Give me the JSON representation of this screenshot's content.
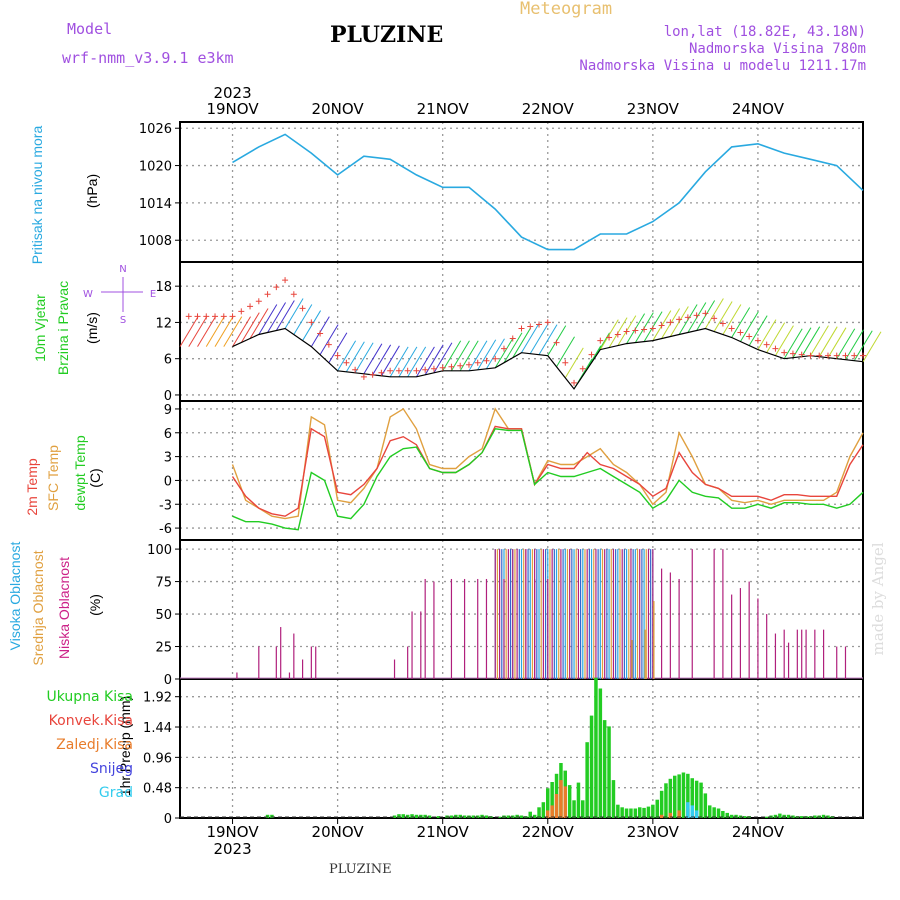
{
  "header": {
    "model_label": "Model",
    "model_name": "wrf-nmm_v3.9.1 e3km",
    "station": "PLUZINE",
    "meteogram": "Meteogram",
    "lonlat": "lon,lat (18.82E, 43.18N)",
    "altitude": "Nadmorska Visina 780m",
    "model_altitude": "Nadmorska Visina u modelu 1211.17m",
    "footer": "PLUZINE",
    "credit": "made by Angel"
  },
  "colors": {
    "pressure": "#29a9e0",
    "wind_speed": "#000000",
    "wind_gust": "#e8453c",
    "temp_2m": "#e8453c",
    "temp_sfc": "#e0a040",
    "temp_dew": "#22cc22",
    "cloud_high": "#29a9e0",
    "cloud_mid": "#e0a040",
    "cloud_low": "#b0207c",
    "precip_total": "#22cc22",
    "precip_conv": "#e8453c",
    "precip_frozen": "#e87c2a",
    "precip_snow": "#4444dd",
    "precip_hail": "#33ccee"
  },
  "axes": {
    "year": "2023",
    "days": [
      "19NOV",
      "20NOV",
      "21NOV",
      "22NOV",
      "23NOV",
      "24NOV"
    ]
  },
  "panels": {
    "pressure": {
      "label1": "Pritisak na nivou mora",
      "unit": "(hPa)"
    },
    "wind": {
      "label1": "10m Vjetar",
      "label2": "Brzina i Pravac",
      "unit": "(m/s)",
      "compass_n": "N",
      "compass_s": "S",
      "compass_w": "W",
      "compass_e": "E"
    },
    "temp": {
      "label1": "2m Temp",
      "label2": "SFC Temp",
      "label3": "dewpt Temp",
      "unit": "(C)"
    },
    "cloud": {
      "label1": "Visoka Oblacnost",
      "label2": "Srednja Oblacnost",
      "label3": "Niska Oblacnost",
      "unit": "(%)"
    },
    "precip": {
      "unit": "1hr Precip (mm)"
    }
  },
  "legend_precip": [
    "Ukupna Kisa",
    "Konvek.Kisa",
    "Zaledj.Kisa",
    "Snijeg",
    "Grad"
  ],
  "chart_data": [
    {
      "type": "line",
      "name": "pressure",
      "x_hours": [
        0,
        6,
        12,
        18,
        24,
        30,
        36,
        42,
        48,
        54,
        60,
        66,
        72,
        78,
        84,
        90,
        96,
        102,
        108,
        114,
        120,
        126,
        132,
        138,
        144
      ],
      "series": [
        {
          "values": [
            1020.5,
            1023,
            1025,
            1022,
            1018.5,
            1021.5,
            1021,
            1018.5,
            1016.5,
            1016.5,
            1013,
            1008.5,
            1006.5,
            1006.5,
            1009,
            1009,
            1011,
            1014,
            1019,
            1023,
            1023.5,
            1022,
            1021,
            1020,
            1016
          ]
        }
      ],
      "yticks": [
        1008,
        1014,
        1020,
        1026
      ],
      "ylim": [
        1004.5,
        1027
      ]
    },
    {
      "type": "line",
      "name": "wind",
      "x_hours": [
        0,
        6,
        12,
        18,
        24,
        30,
        36,
        42,
        48,
        54,
        60,
        66,
        72,
        78,
        84,
        90,
        96,
        102,
        108,
        114,
        120,
        126,
        132,
        138,
        144
      ],
      "series": [
        {
          "values": [
            8,
            10,
            11,
            8,
            4,
            3.5,
            3,
            3,
            4,
            4,
            4.5,
            7,
            6.5,
            1,
            7.5,
            8.5,
            9,
            10,
            11,
            9.5,
            7.5,
            6,
            6.5,
            6,
            5.5
          ]
        },
        {
          "values": [
            13,
            15.5,
            19,
            12,
            6.5,
            3,
            4,
            4,
            4.5,
            5,
            6,
            11,
            12,
            2,
            9,
            10.5,
            11,
            12.5,
            13.5,
            11,
            9,
            7,
            6.5,
            6.5,
            6.5
          ]
        }
      ],
      "yticks": [
        0,
        6,
        12,
        18
      ],
      "ylim": [
        -1,
        22
      ]
    },
    {
      "type": "line",
      "name": "temperature",
      "x_hours": [
        0,
        3,
        6,
        9,
        12,
        15,
        18,
        21,
        24,
        27,
        30,
        33,
        36,
        39,
        42,
        45,
        48,
        51,
        54,
        57,
        60,
        63,
        66,
        69,
        72,
        75,
        78,
        81,
        84,
        87,
        90,
        93,
        96,
        99,
        102,
        105,
        108,
        111,
        114,
        117,
        120,
        123,
        126,
        129,
        132,
        135,
        138,
        141,
        144
      ],
      "series": [
        {
          "values": [
            0.5,
            -2,
            -3.5,
            -4.2,
            -4.5,
            -3.5,
            6.5,
            5.5,
            -1.5,
            -1.8,
            -0.5,
            1.5,
            5,
            5.5,
            4.5,
            1.5,
            1,
            1,
            2,
            3.5,
            6.8,
            6.5,
            6.5,
            -0.5,
            2,
            1.5,
            1.5,
            3.5,
            2,
            1.5,
            0.5,
            -0.5,
            -2,
            -1,
            3.5,
            1,
            -0.5,
            -1,
            -2,
            -2,
            -2,
            -2.5,
            -1.8,
            -1.8,
            -2,
            -2,
            -2,
            2,
            4.5
          ]
        },
        {
          "values": [
            2,
            -2.5,
            -3.5,
            -4.5,
            -4.8,
            -4.5,
            8,
            7,
            -2.5,
            -2.8,
            -1,
            1.5,
            8,
            9,
            6.5,
            2,
            1.5,
            1.5,
            3,
            4,
            9,
            6.5,
            6.5,
            -0.5,
            2.5,
            2,
            2,
            3,
            4,
            2,
            1,
            -0.5,
            -3,
            -1.5,
            6,
            3,
            -0.5,
            -1,
            -2.5,
            -2.8,
            -2.5,
            -3,
            -2.5,
            -2.5,
            -2.5,
            -2.5,
            -1.5,
            3,
            6
          ]
        },
        {
          "values": [
            -4.5,
            -5.2,
            -5.2,
            -5.5,
            -6,
            -6.2,
            1,
            0,
            -4.5,
            -4.8,
            -3,
            0.5,
            3,
            4,
            4.2,
            1.5,
            1,
            1,
            2,
            3.5,
            6.5,
            6.3,
            6.3,
            -0.5,
            1,
            0.5,
            0.5,
            1,
            1.5,
            0.5,
            -0.5,
            -1.5,
            -3.5,
            -2.5,
            0,
            -1.5,
            -2,
            -2.2,
            -3.5,
            -3.5,
            -3,
            -3.5,
            -2.8,
            -2.8,
            -3,
            -3,
            -3.5,
            -3,
            -1.5
          ]
        }
      ],
      "yticks": [
        -6,
        -3,
        0,
        3,
        6,
        9
      ],
      "ylim": [
        -7.5,
        10
      ]
    },
    {
      "type": "bar",
      "name": "cloud",
      "yticks": [
        0,
        25,
        50,
        75,
        100
      ],
      "ylim": [
        0,
        107
      ],
      "low_bars": [
        [
          1,
          5
        ],
        [
          6,
          25
        ],
        [
          10,
          25
        ],
        [
          11,
          40
        ],
        [
          13,
          5
        ],
        [
          14,
          35
        ],
        [
          16,
          15
        ],
        [
          18,
          25
        ],
        [
          19,
          25
        ],
        [
          37,
          15
        ],
        [
          40,
          25
        ],
        [
          41,
          52
        ],
        [
          43,
          52
        ],
        [
          44,
          77
        ],
        [
          46,
          75
        ],
        [
          50,
          77
        ],
        [
          53,
          77
        ],
        [
          56,
          77
        ],
        [
          58,
          77
        ],
        [
          60,
          100
        ],
        [
          62,
          77
        ],
        [
          64,
          100
        ],
        [
          67,
          100
        ],
        [
          69,
          77
        ],
        [
          72,
          77
        ],
        [
          96,
          100
        ],
        [
          98,
          85
        ],
        [
          100,
          82
        ],
        [
          102,
          77
        ],
        [
          105,
          100
        ],
        [
          110,
          100
        ],
        [
          112,
          100
        ],
        [
          114,
          65
        ],
        [
          116,
          70
        ],
        [
          118,
          75
        ],
        [
          120,
          62
        ],
        [
          122,
          50
        ],
        [
          124,
          35
        ],
        [
          126,
          38
        ],
        [
          127,
          28
        ],
        [
          129,
          38
        ],
        [
          130,
          38
        ],
        [
          131,
          38
        ],
        [
          133,
          38
        ],
        [
          135,
          38
        ],
        [
          138,
          25
        ],
        [
          140,
          25
        ]
      ],
      "overcast_hours": [
        60,
        96
      ],
      "mid_bars": [
        [
          91,
          30
        ],
        [
          94,
          38
        ],
        [
          96,
          60
        ]
      ]
    },
    {
      "type": "bar",
      "name": "precip",
      "yticks": [
        0,
        0.48,
        0.96,
        1.44,
        1.92
      ],
      "ylim": [
        0,
        2.2
      ],
      "total": [
        [
          8,
          0.05
        ],
        [
          9,
          0.05
        ],
        [
          37,
          0.04
        ],
        [
          38,
          0.06
        ],
        [
          39,
          0.06
        ],
        [
          40,
          0.05
        ],
        [
          41,
          0.06
        ],
        [
          42,
          0.05
        ],
        [
          43,
          0.05
        ],
        [
          44,
          0.05
        ],
        [
          45,
          0.04
        ],
        [
          47,
          0.03
        ],
        [
          49,
          0.04
        ],
        [
          50,
          0.04
        ],
        [
          51,
          0.05
        ],
        [
          52,
          0.05
        ],
        [
          53,
          0.04
        ],
        [
          54,
          0.04
        ],
        [
          55,
          0.04
        ],
        [
          56,
          0.04
        ],
        [
          57,
          0.05
        ],
        [
          58,
          0.04
        ],
        [
          59,
          0.03
        ],
        [
          61,
          0.02
        ],
        [
          62,
          0.04
        ],
        [
          63,
          0.04
        ],
        [
          64,
          0.04
        ],
        [
          65,
          0.05
        ],
        [
          66,
          0.04
        ],
        [
          67,
          0.03
        ],
        [
          68,
          0.1
        ],
        [
          69,
          0.05
        ],
        [
          70,
          0.17
        ],
        [
          71,
          0.25
        ],
        [
          72,
          0.47
        ],
        [
          73,
          0.57
        ],
        [
          74,
          0.7
        ],
        [
          75,
          0.87
        ],
        [
          76,
          0.75
        ],
        [
          77,
          0.52
        ],
        [
          78,
          0.28
        ],
        [
          79,
          0.56
        ],
        [
          80,
          0.28
        ],
        [
          81,
          1.2
        ],
        [
          82,
          1.62
        ],
        [
          83,
          2.22
        ],
        [
          84,
          2.05
        ],
        [
          85,
          1.55
        ],
        [
          86,
          1.45
        ],
        [
          87,
          0.6
        ],
        [
          88,
          0.21
        ],
        [
          89,
          0.17
        ],
        [
          90,
          0.15
        ],
        [
          91,
          0.15
        ],
        [
          92,
          0.15
        ],
        [
          93,
          0.17
        ],
        [
          94,
          0.16
        ],
        [
          95,
          0.18
        ],
        [
          96,
          0.21
        ],
        [
          97,
          0.29
        ],
        [
          98,
          0.43
        ],
        [
          99,
          0.55
        ],
        [
          100,
          0.62
        ],
        [
          101,
          0.67
        ],
        [
          102,
          0.69
        ],
        [
          103,
          0.72
        ],
        [
          104,
          0.7
        ],
        [
          105,
          0.63
        ],
        [
          106,
          0.59
        ],
        [
          107,
          0.56
        ],
        [
          108,
          0.39
        ],
        [
          109,
          0.2
        ],
        [
          110,
          0.17
        ],
        [
          111,
          0.15
        ],
        [
          112,
          0.11
        ],
        [
          113,
          0.08
        ],
        [
          114,
          0.05
        ],
        [
          115,
          0.05
        ],
        [
          116,
          0.04
        ],
        [
          117,
          0.03
        ],
        [
          118,
          0.03
        ],
        [
          122,
          0.02
        ],
        [
          123,
          0.04
        ],
        [
          124,
          0.05
        ],
        [
          125,
          0.07
        ],
        [
          126,
          0.05
        ],
        [
          127,
          0.05
        ],
        [
          128,
          0.04
        ],
        [
          129,
          0.03
        ],
        [
          130,
          0.03
        ],
        [
          131,
          0.03
        ],
        [
          132,
          0.03
        ],
        [
          133,
          0.04
        ],
        [
          134,
          0.04
        ],
        [
          135,
          0.05
        ],
        [
          136,
          0.04
        ],
        [
          137,
          0.03
        ]
      ],
      "convective": [
        [
          72,
          0.12
        ],
        [
          73,
          0.2
        ],
        [
          74,
          0.38
        ],
        [
          75,
          0.6
        ],
        [
          76,
          0.5
        ],
        [
          98,
          0.05
        ],
        [
          100,
          0.08
        ],
        [
          102,
          0.12
        ],
        [
          104,
          0.15
        ],
        [
          106,
          0.1
        ]
      ],
      "snow": [
        [
          104,
          0.25
        ],
        [
          105,
          0.2
        ],
        [
          106,
          0.12
        ]
      ]
    }
  ]
}
